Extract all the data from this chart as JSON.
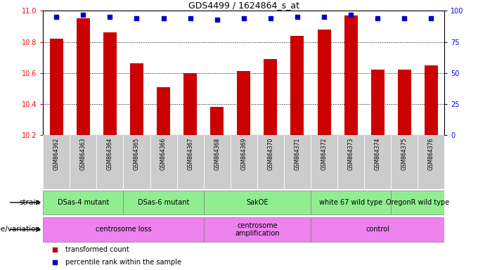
{
  "title": "GDS4499 / 1624864_s_at",
  "samples": [
    "GSM864362",
    "GSM864363",
    "GSM864364",
    "GSM864365",
    "GSM864366",
    "GSM864367",
    "GSM864368",
    "GSM864369",
    "GSM864370",
    "GSM864371",
    "GSM864372",
    "GSM864373",
    "GSM864374",
    "GSM864375",
    "GSM864376"
  ],
  "red_values": [
    10.82,
    10.95,
    10.86,
    10.66,
    10.51,
    10.6,
    10.38,
    10.61,
    10.69,
    10.84,
    10.88,
    10.97,
    10.62,
    10.62,
    10.65
  ],
  "blue_values": [
    95,
    97,
    95,
    94,
    94,
    94,
    93,
    94,
    94,
    95,
    95,
    97,
    94,
    94,
    94
  ],
  "ylim_left": [
    10.2,
    11.0
  ],
  "ylim_right": [
    0,
    100
  ],
  "yticks_left": [
    10.2,
    10.4,
    10.6,
    10.8,
    11.0
  ],
  "yticks_right": [
    0,
    25,
    50,
    75,
    100
  ],
  "strain_groups": [
    {
      "label": "DSas-4 mutant",
      "start": 0,
      "end": 2,
      "color": "#90EE90"
    },
    {
      "label": "DSas-6 mutant",
      "start": 3,
      "end": 5,
      "color": "#90EE90"
    },
    {
      "label": "SakOE",
      "start": 6,
      "end": 9,
      "color": "#90EE90"
    },
    {
      "label": "white 67 wild type",
      "start": 10,
      "end": 12,
      "color": "#90EE90"
    },
    {
      "label": "OregonR wild type",
      "start": 13,
      "end": 14,
      "color": "#90EE90"
    }
  ],
  "genotype_groups": [
    {
      "label": "centrosome loss",
      "start": 0,
      "end": 5,
      "color": "#EE82EE"
    },
    {
      "label": "centrosome\namplification",
      "start": 6,
      "end": 9,
      "color": "#EE82EE"
    },
    {
      "label": "control",
      "start": 10,
      "end": 14,
      "color": "#EE82EE"
    }
  ],
  "bar_color": "#CC0000",
  "dot_color": "#0000CC",
  "sample_bg_color": "#CCCCCC",
  "strain_row_label": "strain",
  "genotype_row_label": "genotype/variation",
  "legend_red": "transformed count",
  "legend_blue": "percentile rank within the sample"
}
